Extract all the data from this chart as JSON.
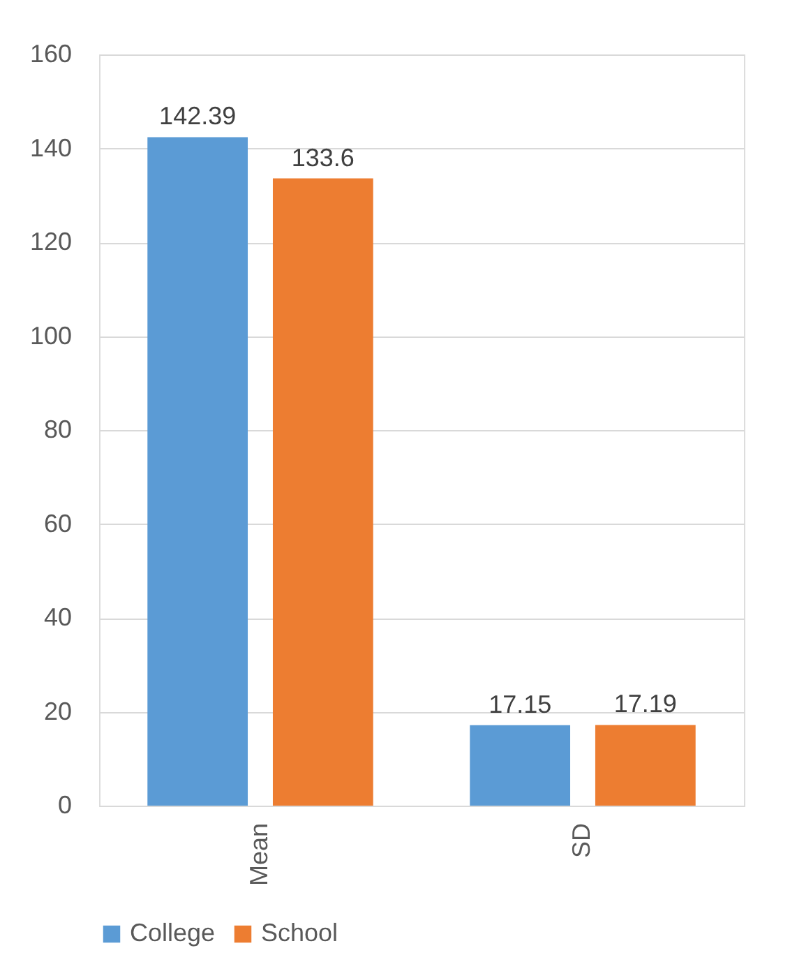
{
  "chart_data": {
    "type": "bar",
    "categories": [
      "Mean",
      "SD"
    ],
    "series": [
      {
        "name": "College",
        "color": "#5b9bd5",
        "values": [
          142.39,
          17.15
        ]
      },
      {
        "name": "School",
        "color": "#ed7d31",
        "values": [
          133.6,
          17.19
        ]
      }
    ],
    "ylim": [
      0,
      160
    ],
    "yticks": [
      0,
      20,
      40,
      60,
      80,
      100,
      120,
      140,
      160
    ],
    "grid": "y",
    "legend": "bottom",
    "data_labels": true
  }
}
